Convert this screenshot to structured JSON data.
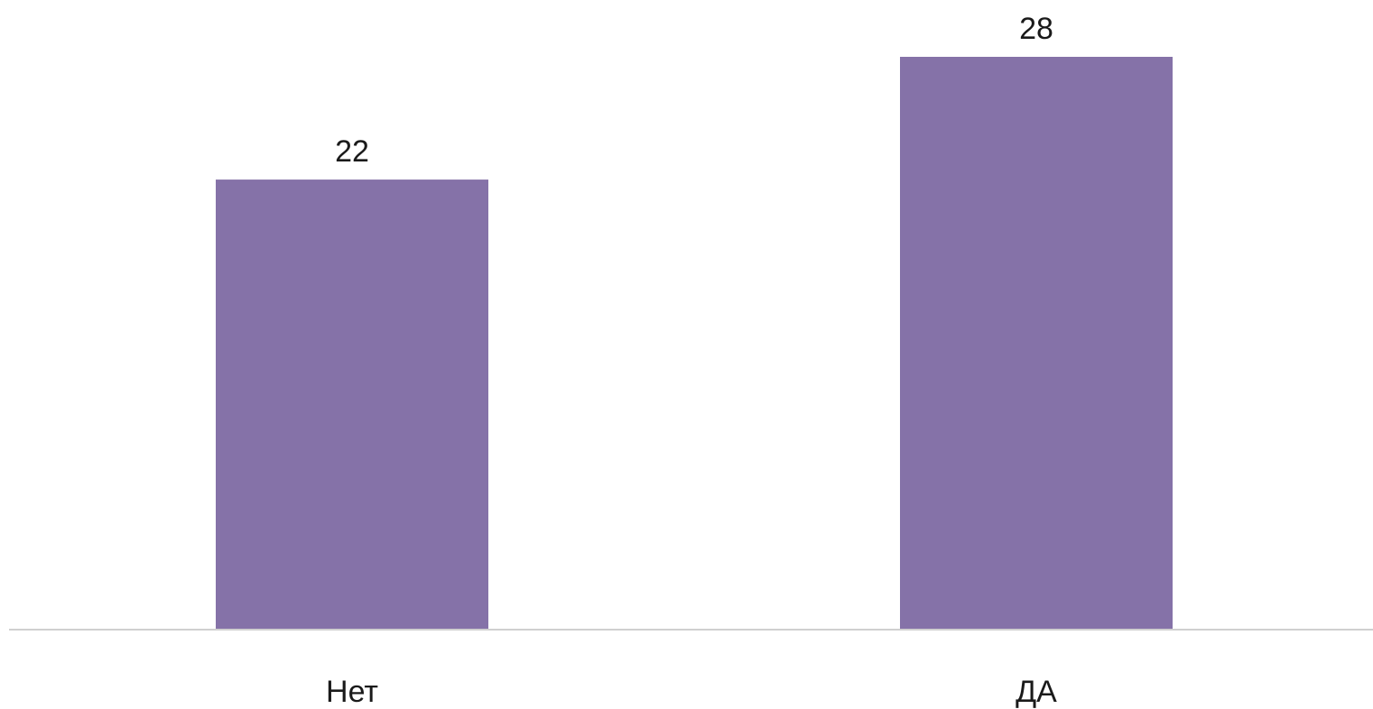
{
  "chart_data": {
    "type": "bar",
    "categories": [
      "Нет",
      "ДА"
    ],
    "values": [
      22,
      28
    ],
    "value_labels": [
      "22",
      "28"
    ],
    "title": "",
    "xlabel": "",
    "ylabel": "",
    "ylim": [
      0,
      28
    ],
    "grid": false,
    "legend": "none",
    "colors": {
      "bar": "#8572a8",
      "axis": "#d0d0d0"
    }
  }
}
